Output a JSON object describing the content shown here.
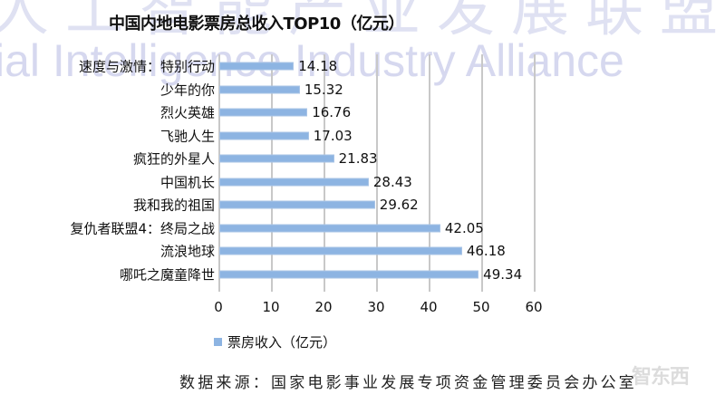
{
  "watermark": {
    "top_text": "人工智能产业发展联盟",
    "mid_text": "ial Intelligence Industry Alliance"
  },
  "chart_data": {
    "type": "bar",
    "orientation": "horizontal",
    "title": "中国内地电影票房总收入TOP10（亿元）",
    "xlabel": "",
    "ylabel": "",
    "categories": [
      "速度与激情：特别行动",
      "少年的你",
      "烈火英雄",
      "飞驰人生",
      "疯狂的外星人",
      "中国机长",
      "我和我的祖国",
      "复仇者联盟4：终局之战",
      "流浪地球",
      "哪吒之魔童降世"
    ],
    "values": [
      14.18,
      15.32,
      16.76,
      17.03,
      21.83,
      28.43,
      29.62,
      42.05,
      46.18,
      49.34
    ],
    "value_labels": [
      "14.18",
      "15.32",
      "16.76",
      "17.03",
      "21.83",
      "28.43",
      "29.62",
      "42.05",
      "46.18",
      "49.34"
    ],
    "series": [
      {
        "name": "票房收入（亿元）",
        "color": "#8DB4E2",
        "values": [
          14.18,
          15.32,
          16.76,
          17.03,
          21.83,
          28.43,
          29.62,
          42.05,
          46.18,
          49.34
        ]
      }
    ],
    "xlim": [
      0,
      60
    ],
    "x_ticks": [
      "0",
      "10",
      "20",
      "30",
      "40",
      "50",
      "60"
    ],
    "grid": "vertical",
    "legend": {
      "position": "bottom",
      "entries": [
        "票房收入（亿元）"
      ]
    }
  },
  "source": "数据来源：国家电影事业发展专项资金管理委员会办公室",
  "logo_text": "智东西"
}
